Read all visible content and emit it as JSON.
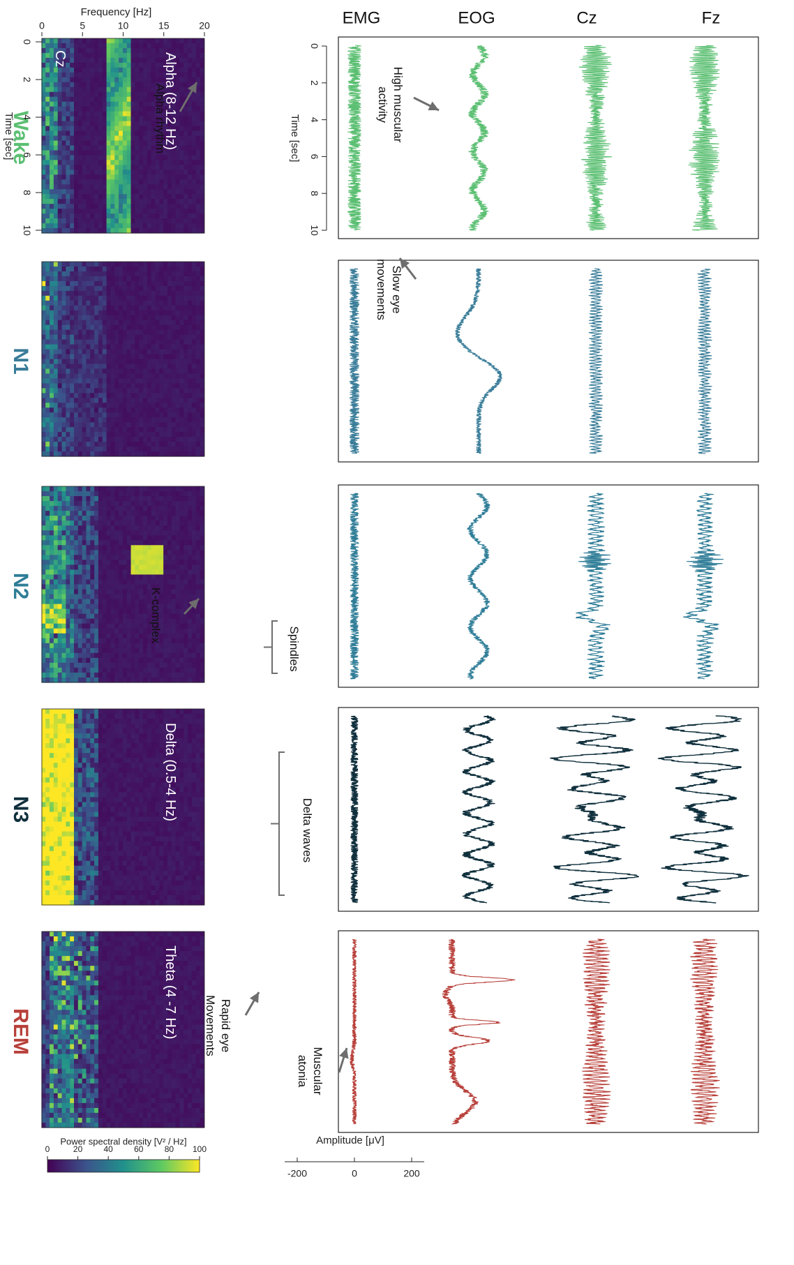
{
  "chart_data": {
    "type": "line",
    "stages": [
      {
        "name": "Wake",
        "color": "#5bbf72"
      },
      {
        "name": "N1",
        "color": "#3a7d99"
      },
      {
        "name": "N2",
        "color": "#2f7d97"
      },
      {
        "name": "N3",
        "color": "#0f2f3c"
      },
      {
        "name": "REM",
        "color": "#b8403a"
      }
    ],
    "channels": [
      "Fz",
      "Cz",
      "EOG",
      "EMG"
    ],
    "time_axis": {
      "label": "Time [sec]",
      "ticks": [
        "0",
        "2",
        "4",
        "6",
        "8",
        "10"
      ],
      "range": [
        0,
        10
      ]
    },
    "amplitude_axis": {
      "label": "Amplitude [μV]",
      "ticks": [
        "200",
        "0",
        "-200"
      ]
    },
    "frequency_axis": {
      "label": "Frequency [Hz]",
      "ticks": [
        "0",
        "5",
        "10",
        "15",
        "20"
      ],
      "range": [
        0,
        20
      ]
    },
    "colorbar": {
      "label": "Power spectral density [V² / Hz]",
      "ticks": [
        "100",
        "80",
        "60",
        "40",
        "20",
        "0"
      ]
    },
    "annotations": [
      {
        "stage": "Wake",
        "text": [
          "Alpha rhythm"
        ]
      },
      {
        "stage": "Wake",
        "text": [
          "High muscular",
          "activity"
        ]
      },
      {
        "stage": "N1",
        "text": [
          "Slow eye",
          "movements"
        ]
      },
      {
        "stage": "N2",
        "text": [
          "K-complex"
        ]
      },
      {
        "stage": "N2",
        "text": [
          "Spindles"
        ]
      },
      {
        "stage": "N3",
        "text": [
          "Delta waves"
        ]
      },
      {
        "stage": "REM",
        "text": [
          "Rapid eye",
          "Movements"
        ]
      },
      {
        "stage": "REM",
        "text": [
          "Muscular",
          "atonia"
        ]
      }
    ],
    "spectrogram_labels": [
      {
        "stage": "Wake",
        "text": "Alpha (8-12 Hz)"
      },
      {
        "stage": "N2",
        "text": ""
      },
      {
        "stage": "N3",
        "text": "Delta (0.5-4 Hz)"
      },
      {
        "stage": "REM",
        "text": "Theta (4 -7 Hz)"
      }
    ],
    "electrode_label": "Cz"
  }
}
